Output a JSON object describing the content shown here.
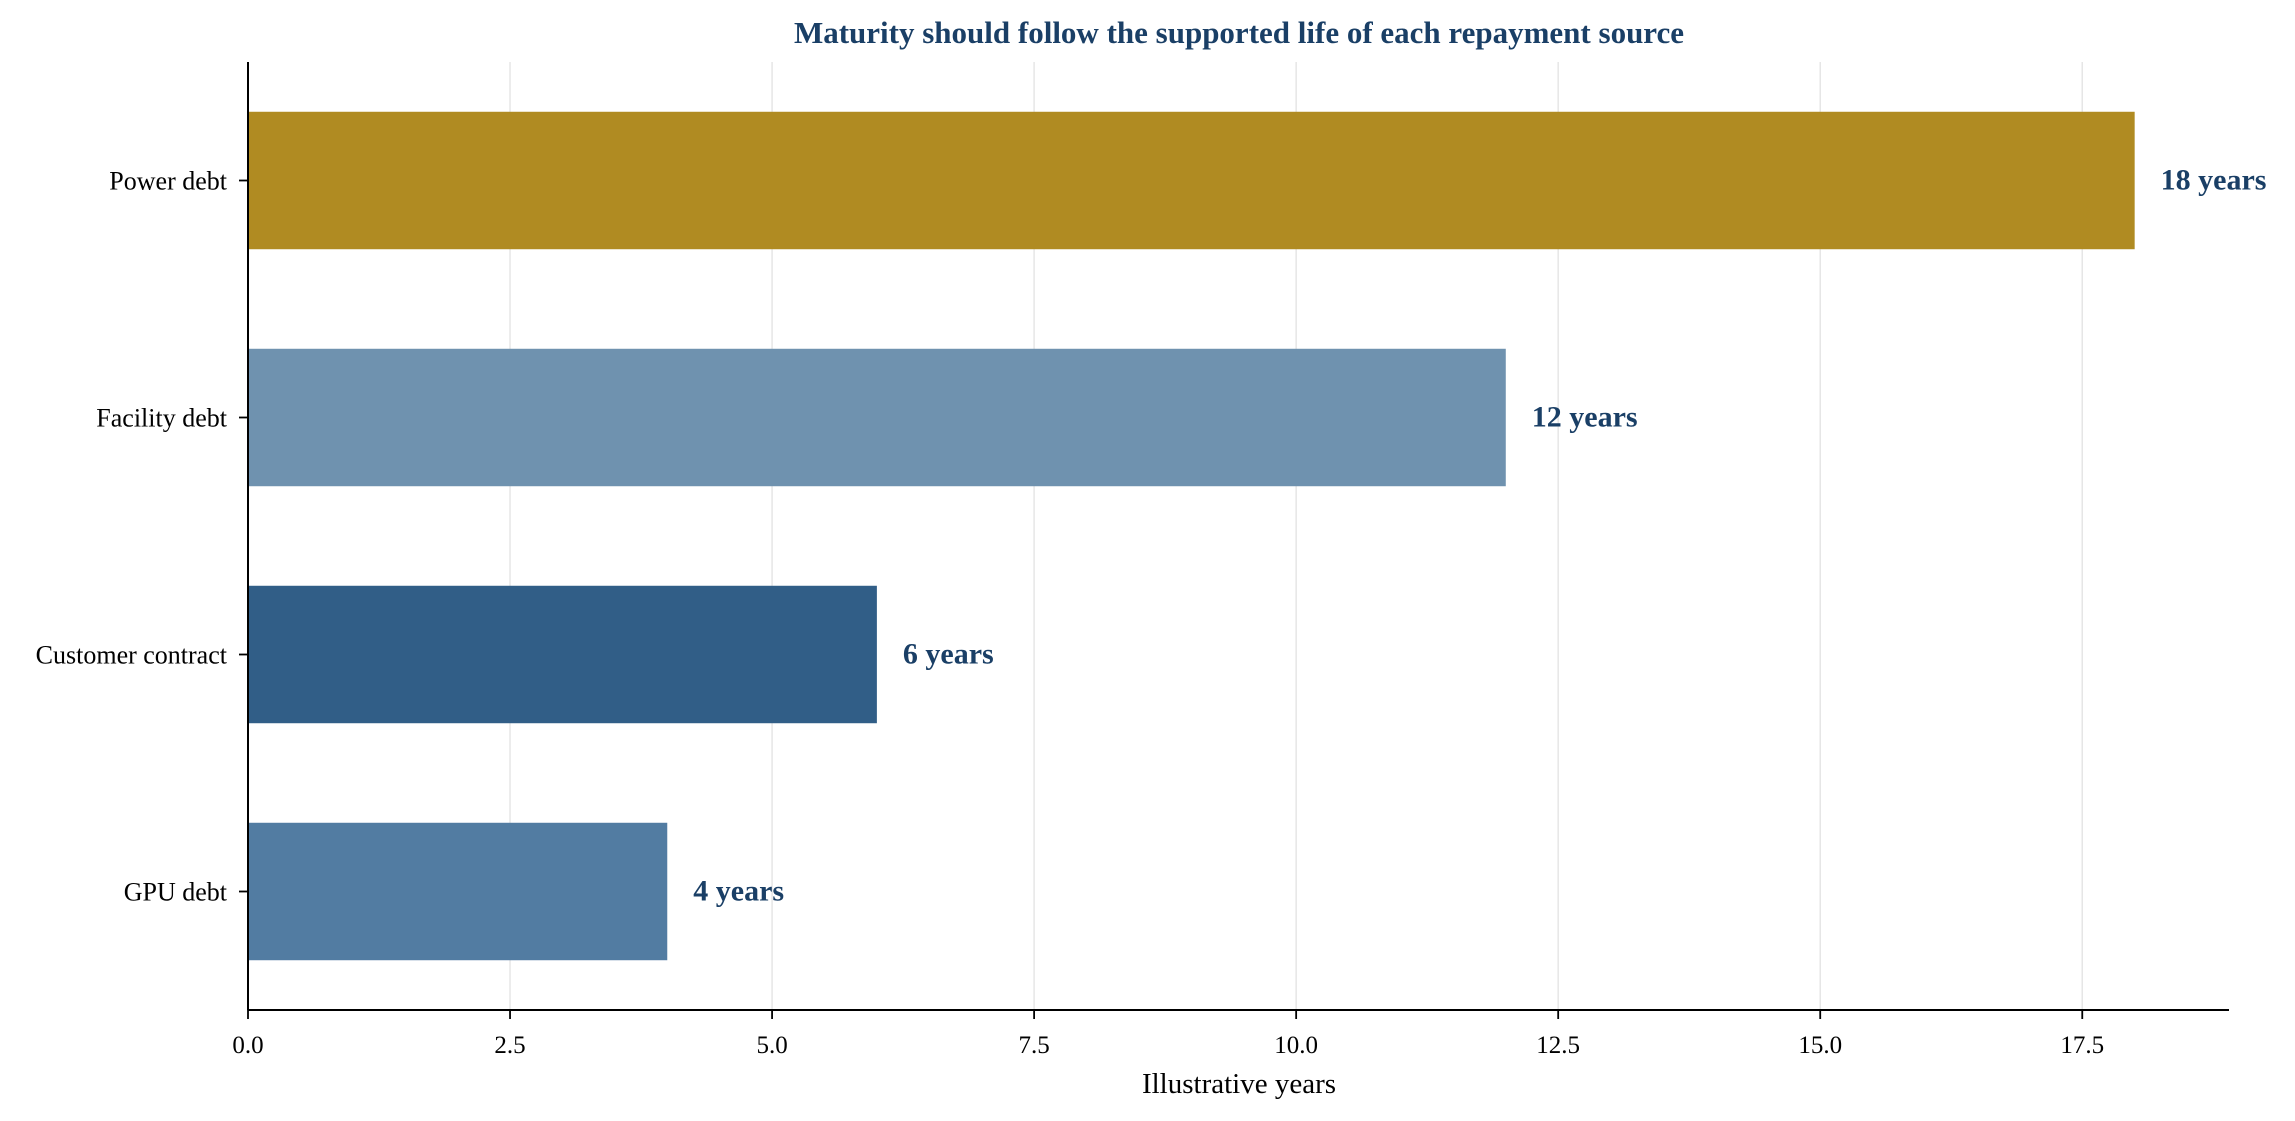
{
  "chart_data": {
    "type": "bar",
    "orientation": "horizontal",
    "title": "Maturity should follow the supported life of each repayment source",
    "xlabel": "Illustrative years",
    "ylabel": "",
    "categories": [
      "Power debt",
      "Facility debt",
      "Customer contract",
      "GPU debt"
    ],
    "values": [
      18,
      12,
      6,
      4
    ],
    "data_labels": [
      "18 years",
      "12 years",
      "6 years",
      "4 years"
    ],
    "colors": [
      "#b08b22",
      "#6f92af",
      "#315e87",
      "#527ca2"
    ],
    "xlim": [
      0,
      18.9
    ],
    "xticks": [
      0.0,
      2.5,
      5.0,
      7.5,
      10.0,
      12.5,
      15.0,
      17.5
    ],
    "xtick_labels": [
      "0.0",
      "2.5",
      "5.0",
      "7.5",
      "10.0",
      "12.5",
      "15.0",
      "17.5"
    ],
    "grid": "vertical",
    "legend": "none",
    "title_color": "#1a3f66",
    "label_color": "#1a3f66",
    "grid_color": "#e6e6e6"
  }
}
